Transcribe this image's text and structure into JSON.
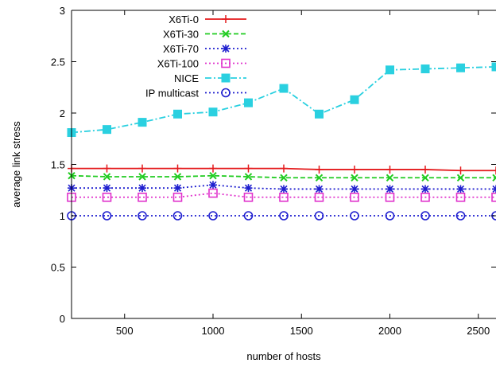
{
  "chart_data": {
    "type": "line",
    "xlabel": "number of hosts",
    "ylabel": "average link stress",
    "xlim": [
      200,
      2600
    ],
    "ylim": [
      0,
      3
    ],
    "xticks": [
      500,
      1000,
      1500,
      2000,
      2500
    ],
    "xtick_labels": [
      "500",
      "1000",
      "1500",
      "2000",
      "2500"
    ],
    "yticks": [
      0,
      0.5,
      1,
      1.5,
      2,
      2.5,
      3
    ],
    "ytick_labels": [
      "0",
      "0.5",
      "1",
      "1.5",
      "2",
      "2.5",
      "3"
    ],
    "grid": false,
    "legend_position": "top-left",
    "x": [
      200,
      400,
      600,
      800,
      1000,
      1200,
      1400,
      1600,
      1800,
      2000,
      2200,
      2400,
      2600
    ],
    "series": [
      {
        "name": "X6Ti-0",
        "color": "#e41a1c",
        "dash": "solid",
        "marker": "plus",
        "values": [
          1.46,
          1.46,
          1.46,
          1.46,
          1.46,
          1.46,
          1.46,
          1.45,
          1.45,
          1.45,
          1.45,
          1.44,
          1.44
        ]
      },
      {
        "name": "X6Ti-30",
        "color": "#22cc22",
        "dash": "dashed",
        "marker": "cross",
        "values": [
          1.39,
          1.38,
          1.38,
          1.38,
          1.39,
          1.38,
          1.37,
          1.37,
          1.37,
          1.37,
          1.37,
          1.37,
          1.37
        ]
      },
      {
        "name": "X6Ti-70",
        "color": "#1f1fcf",
        "dash": "dotted",
        "marker": "star",
        "values": [
          1.27,
          1.27,
          1.27,
          1.27,
          1.3,
          1.27,
          1.26,
          1.26,
          1.26,
          1.26,
          1.26,
          1.26,
          1.26
        ]
      },
      {
        "name": "X6Ti-100",
        "color": "#e033cc",
        "dash": "dotted",
        "marker": "square",
        "values": [
          1.18,
          1.18,
          1.18,
          1.18,
          1.22,
          1.18,
          1.18,
          1.18,
          1.18,
          1.18,
          1.18,
          1.18,
          1.18
        ]
      },
      {
        "name": "NICE",
        "color": "#2ad0e0",
        "dash": "dashdot",
        "marker": "filled-square",
        "values": [
          1.81,
          1.84,
          1.91,
          1.99,
          2.01,
          2.1,
          2.24,
          1.99,
          2.13,
          2.42,
          2.43,
          2.44,
          2.45
        ]
      },
      {
        "name": "IP multicast",
        "color": "#1f1fcf",
        "dash": "dotted",
        "marker": "circle",
        "values": [
          1.0,
          1.0,
          1.0,
          1.0,
          1.0,
          1.0,
          1.0,
          1.0,
          1.0,
          1.0,
          1.0,
          1.0,
          1.0
        ]
      }
    ]
  }
}
